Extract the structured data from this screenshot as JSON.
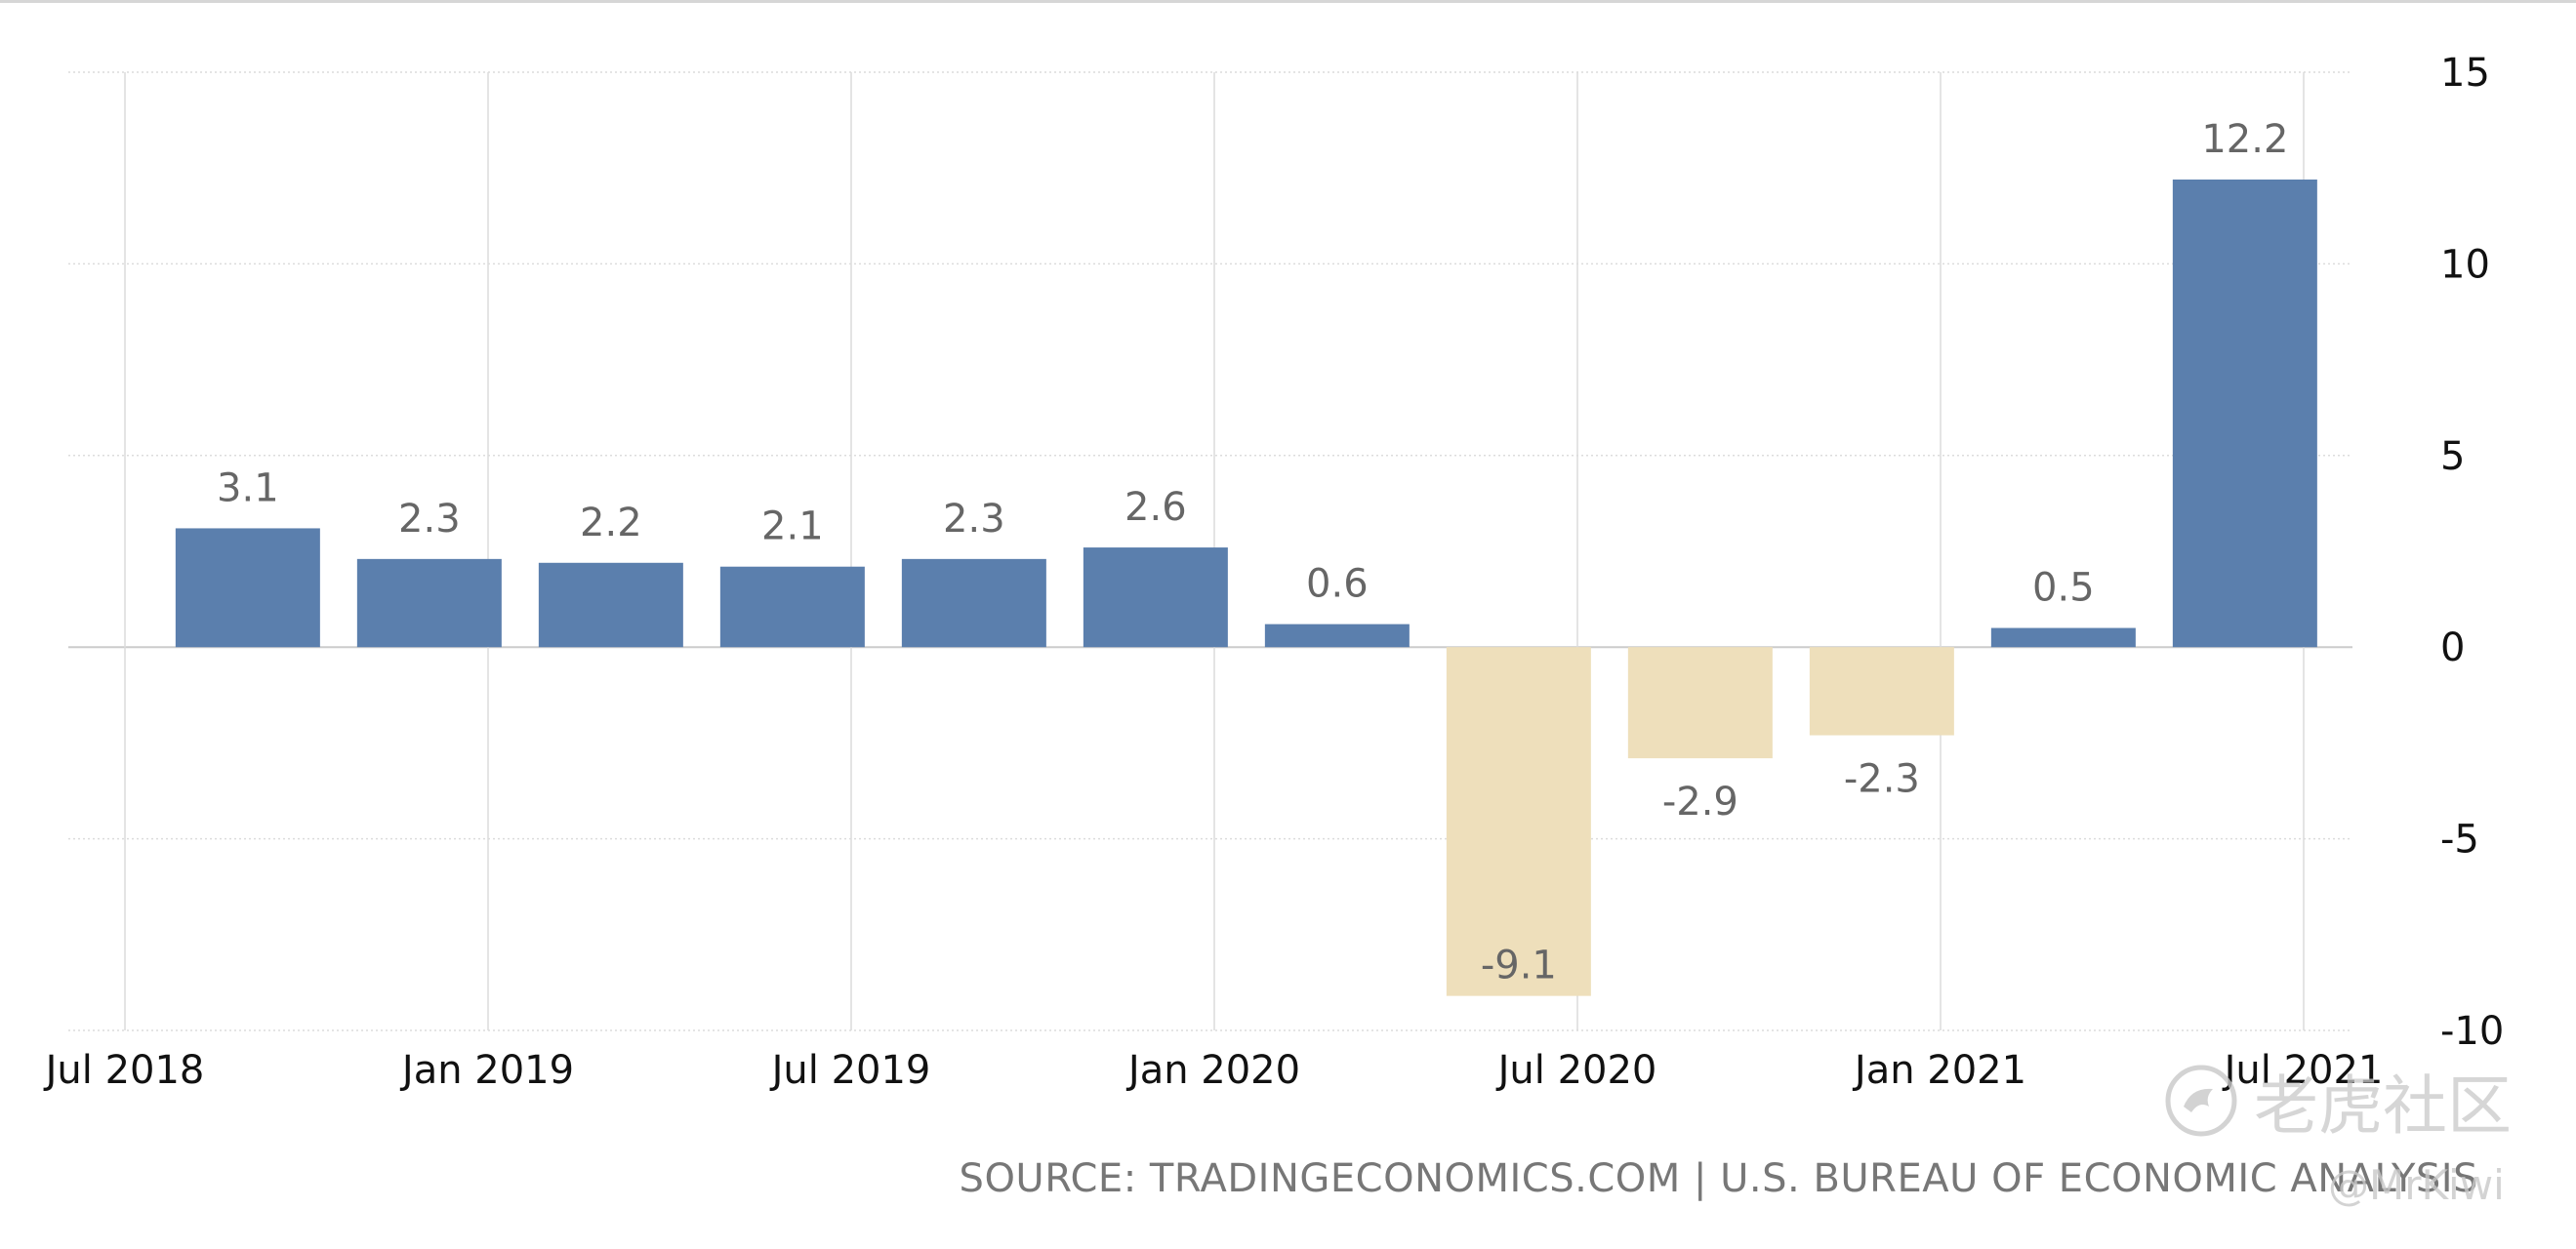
{
  "chart_data": {
    "type": "bar",
    "categories": [
      "Q3 2018",
      "Q4 2018",
      "Q1 2019",
      "Q2 2019",
      "Q3 2019",
      "Q4 2019",
      "Q1 2020",
      "Q2 2020",
      "Q3 2020",
      "Q4 2020",
      "Q1 2021",
      "Q2 2021"
    ],
    "values": [
      3.1,
      2.3,
      2.2,
      2.1,
      2.3,
      2.6,
      0.6,
      -9.1,
      -2.9,
      -2.3,
      0.5,
      12.2
    ],
    "value_labels": [
      "3.1",
      "2.3",
      "2.2",
      "2.1",
      "2.3",
      "2.6",
      "0.6",
      "-9.1",
      "-2.9",
      "-2.3",
      "0.5",
      "12.2"
    ],
    "x_ticks": [
      "Jul 2018",
      "Jan 2019",
      "Jul 2019",
      "Jan 2020",
      "Jul 2020",
      "Jan 2021",
      "Jul 2021"
    ],
    "y_ticks": [
      "15",
      "10",
      "5",
      "0",
      "-5",
      "-10"
    ],
    "ylim": [
      -10,
      15
    ],
    "grid": true,
    "y_axis_position": "right",
    "colors": {
      "positive": "#5b7fad",
      "negative": "#eedfbb",
      "grid": "#dcdcdc",
      "zero_line": "#cccccc"
    }
  },
  "source": "SOURCE: TRADINGECONOMICS.COM | U.S. BUREAU OF ECONOMIC ANALYSIS",
  "watermark": {
    "brand": "老虎社区",
    "user": "@MrKiwi",
    "icon": "tiger-logo-icon"
  }
}
